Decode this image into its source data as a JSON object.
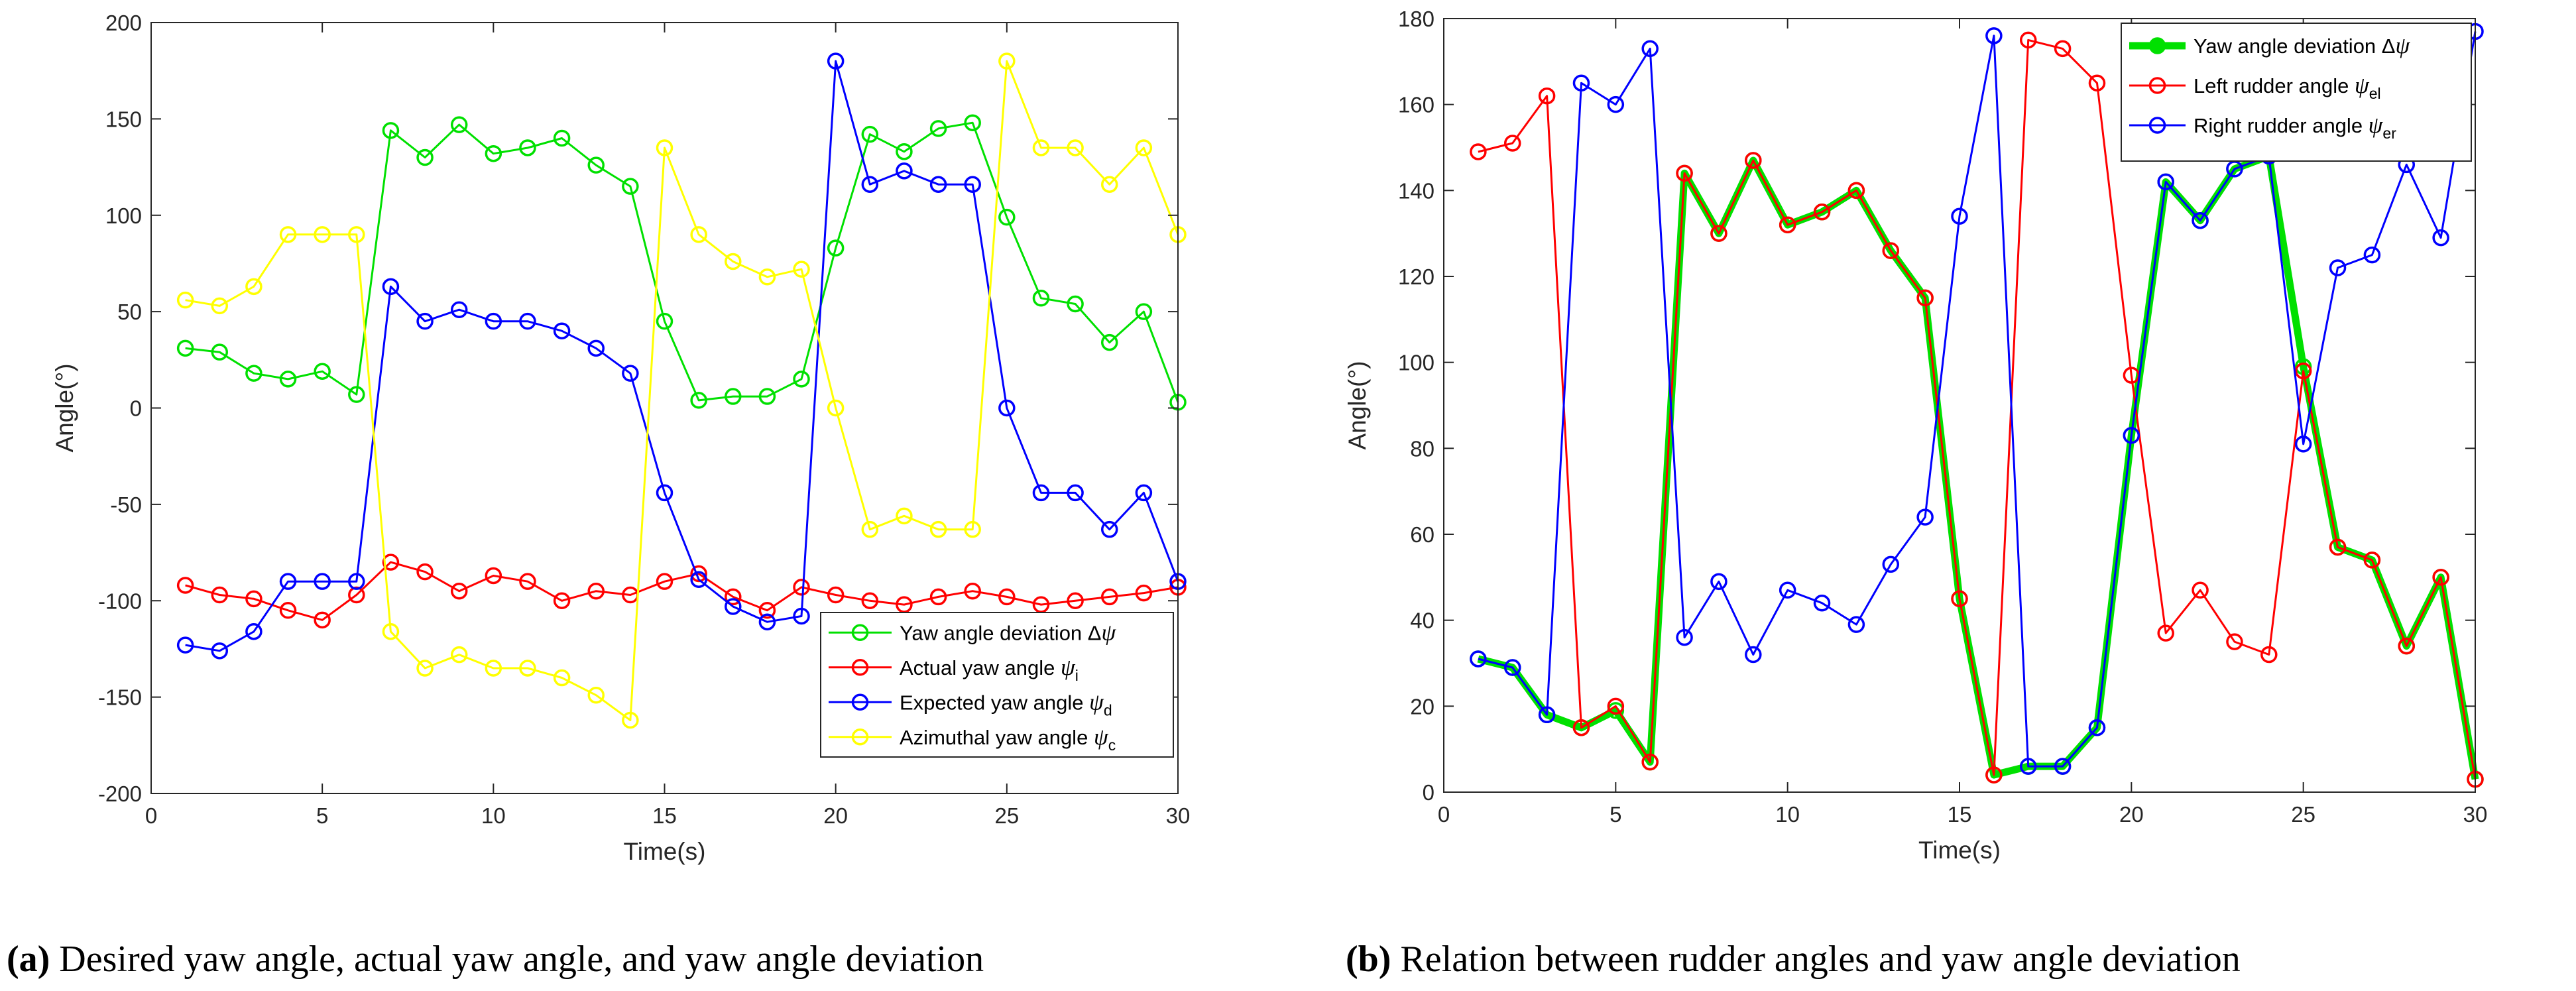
{
  "chart_data": [
    {
      "type": "line",
      "title": "",
      "xlabel": "Time(s)",
      "ylabel": "Angle(°)",
      "xlim": [
        0,
        30
      ],
      "ylim": [
        -200,
        200
      ],
      "xticks": [
        0,
        5,
        10,
        15,
        20,
        25,
        30
      ],
      "yticks": [
        -200,
        -150,
        -100,
        -50,
        0,
        50,
        100,
        150,
        200
      ],
      "grid": false,
      "legend_position": "bottom-right",
      "caption": {
        "label": "(a)",
        "text": " Desired yaw angle, actual yaw angle, and yaw angle deviation"
      },
      "x": [
        1,
        2,
        3,
        4,
        5,
        6,
        7,
        8,
        9,
        10,
        11,
        12,
        13,
        14,
        15,
        16,
        17,
        18,
        19,
        20,
        21,
        22,
        23,
        24,
        25,
        26,
        27,
        28,
        29,
        30
      ],
      "series": [
        {
          "name": "Yaw angle deviation Δψ",
          "legend_main": "Yaw angle deviation Δ",
          "legend_symbol": "ψ",
          "legend_sub": "",
          "color": "#00e000",
          "line_width": 3,
          "values": [
            31,
            29,
            18,
            15,
            19,
            7,
            144,
            130,
            147,
            132,
            135,
            140,
            126,
            115,
            45,
            4,
            6,
            6,
            15,
            83,
            142,
            133,
            145,
            148,
            99,
            57,
            54,
            34,
            50,
            3
          ]
        },
        {
          "name": "Actual yaw angle ψi",
          "legend_main": "Actual yaw angle ",
          "legend_symbol": "ψ",
          "legend_sub": "i",
          "color": "#ff0000",
          "line_width": 3,
          "values": [
            -92,
            -97,
            -99,
            -105,
            -110,
            -97,
            -80,
            -85,
            -95,
            -87,
            -90,
            -100,
            -95,
            -97,
            -90,
            -86,
            -98,
            -105,
            -93,
            -97,
            -100,
            -102,
            -98,
            -95,
            -98,
            -102,
            -100,
            -98,
            -96,
            -93
          ]
        },
        {
          "name": "Expected yaw angle ψd",
          "legend_main": "Expected yaw angle ",
          "legend_symbol": "ψ",
          "legend_sub": "d",
          "color": "#0000ff",
          "line_width": 3,
          "values": [
            -123,
            -126,
            -116,
            -90,
            -90,
            -90,
            63,
            45,
            51,
            45,
            45,
            40,
            31,
            18,
            -44,
            -89,
            -103,
            -111,
            -108,
            180,
            116,
            123,
            116,
            116,
            0,
            -44,
            -44,
            -63,
            -44,
            -90
          ]
        },
        {
          "name": "Azimuthal yaw angle ψc",
          "legend_main": "Azimuthal yaw angle ",
          "legend_symbol": "ψ",
          "legend_sub": "c",
          "color": "#ffff00",
          "line_width": 3,
          "values": [
            56,
            53,
            63,
            90,
            90,
            90,
            -116,
            -135,
            -128,
            -135,
            -135,
            -140,
            -149,
            -162,
            135,
            90,
            76,
            68,
            72,
            0,
            -63,
            -56,
            -63,
            -63,
            180,
            135,
            135,
            116,
            135,
            90
          ]
        }
      ]
    },
    {
      "type": "line",
      "title": "",
      "xlabel": "Time(s)",
      "ylabel": "Angle(°)",
      "xlim": [
        0,
        30
      ],
      "ylim": [
        0,
        180
      ],
      "xticks": [
        0,
        5,
        10,
        15,
        20,
        25,
        30
      ],
      "yticks": [
        0,
        20,
        40,
        60,
        80,
        100,
        120,
        140,
        160,
        180
      ],
      "grid": false,
      "legend_position": "top-right",
      "caption": {
        "label": "(b)",
        "text": " Relation between rudder angles and yaw angle deviation"
      },
      "x": [
        1,
        2,
        3,
        4,
        5,
        6,
        7,
        8,
        9,
        10,
        11,
        12,
        13,
        14,
        15,
        16,
        17,
        18,
        19,
        20,
        21,
        22,
        23,
        24,
        25,
        26,
        27,
        28,
        29,
        30
      ],
      "series": [
        {
          "name": "Yaw angle deviation Δψ",
          "legend_main": "Yaw angle deviation Δ",
          "legend_symbol": "ψ",
          "legend_sub": "",
          "color": "#00e000",
          "line_width": 11,
          "values": [
            31,
            29,
            18,
            15,
            19,
            7,
            144,
            130,
            147,
            132,
            135,
            140,
            126,
            115,
            45,
            4,
            6,
            6,
            15,
            83,
            142,
            133,
            145,
            148,
            99,
            57,
            54,
            34,
            50,
            3
          ]
        },
        {
          "name": "Left rudder angle ψel",
          "legend_main": "Left rudder angle ",
          "legend_symbol": "ψ",
          "legend_sub": "el",
          "color": "#ff0000",
          "line_width": 3,
          "values": [
            149,
            151,
            162,
            15,
            20,
            7,
            144,
            130,
            147,
            132,
            135,
            140,
            126,
            115,
            45,
            4,
            175,
            173,
            165,
            97,
            37,
            47,
            35,
            32,
            98,
            57,
            54,
            34,
            50,
            3
          ]
        },
        {
          "name": "Right rudder angle ψer",
          "legend_main": "Right rudder angle ",
          "legend_symbol": "ψ",
          "legend_sub": "er",
          "color": "#0000ff",
          "line_width": 3,
          "values": [
            31,
            29,
            18,
            165,
            160,
            173,
            36,
            49,
            32,
            47,
            44,
            39,
            53,
            64,
            134,
            176,
            6,
            6,
            15,
            83,
            142,
            133,
            145,
            148,
            81,
            122,
            125,
            146,
            129,
            177
          ]
        }
      ]
    }
  ]
}
